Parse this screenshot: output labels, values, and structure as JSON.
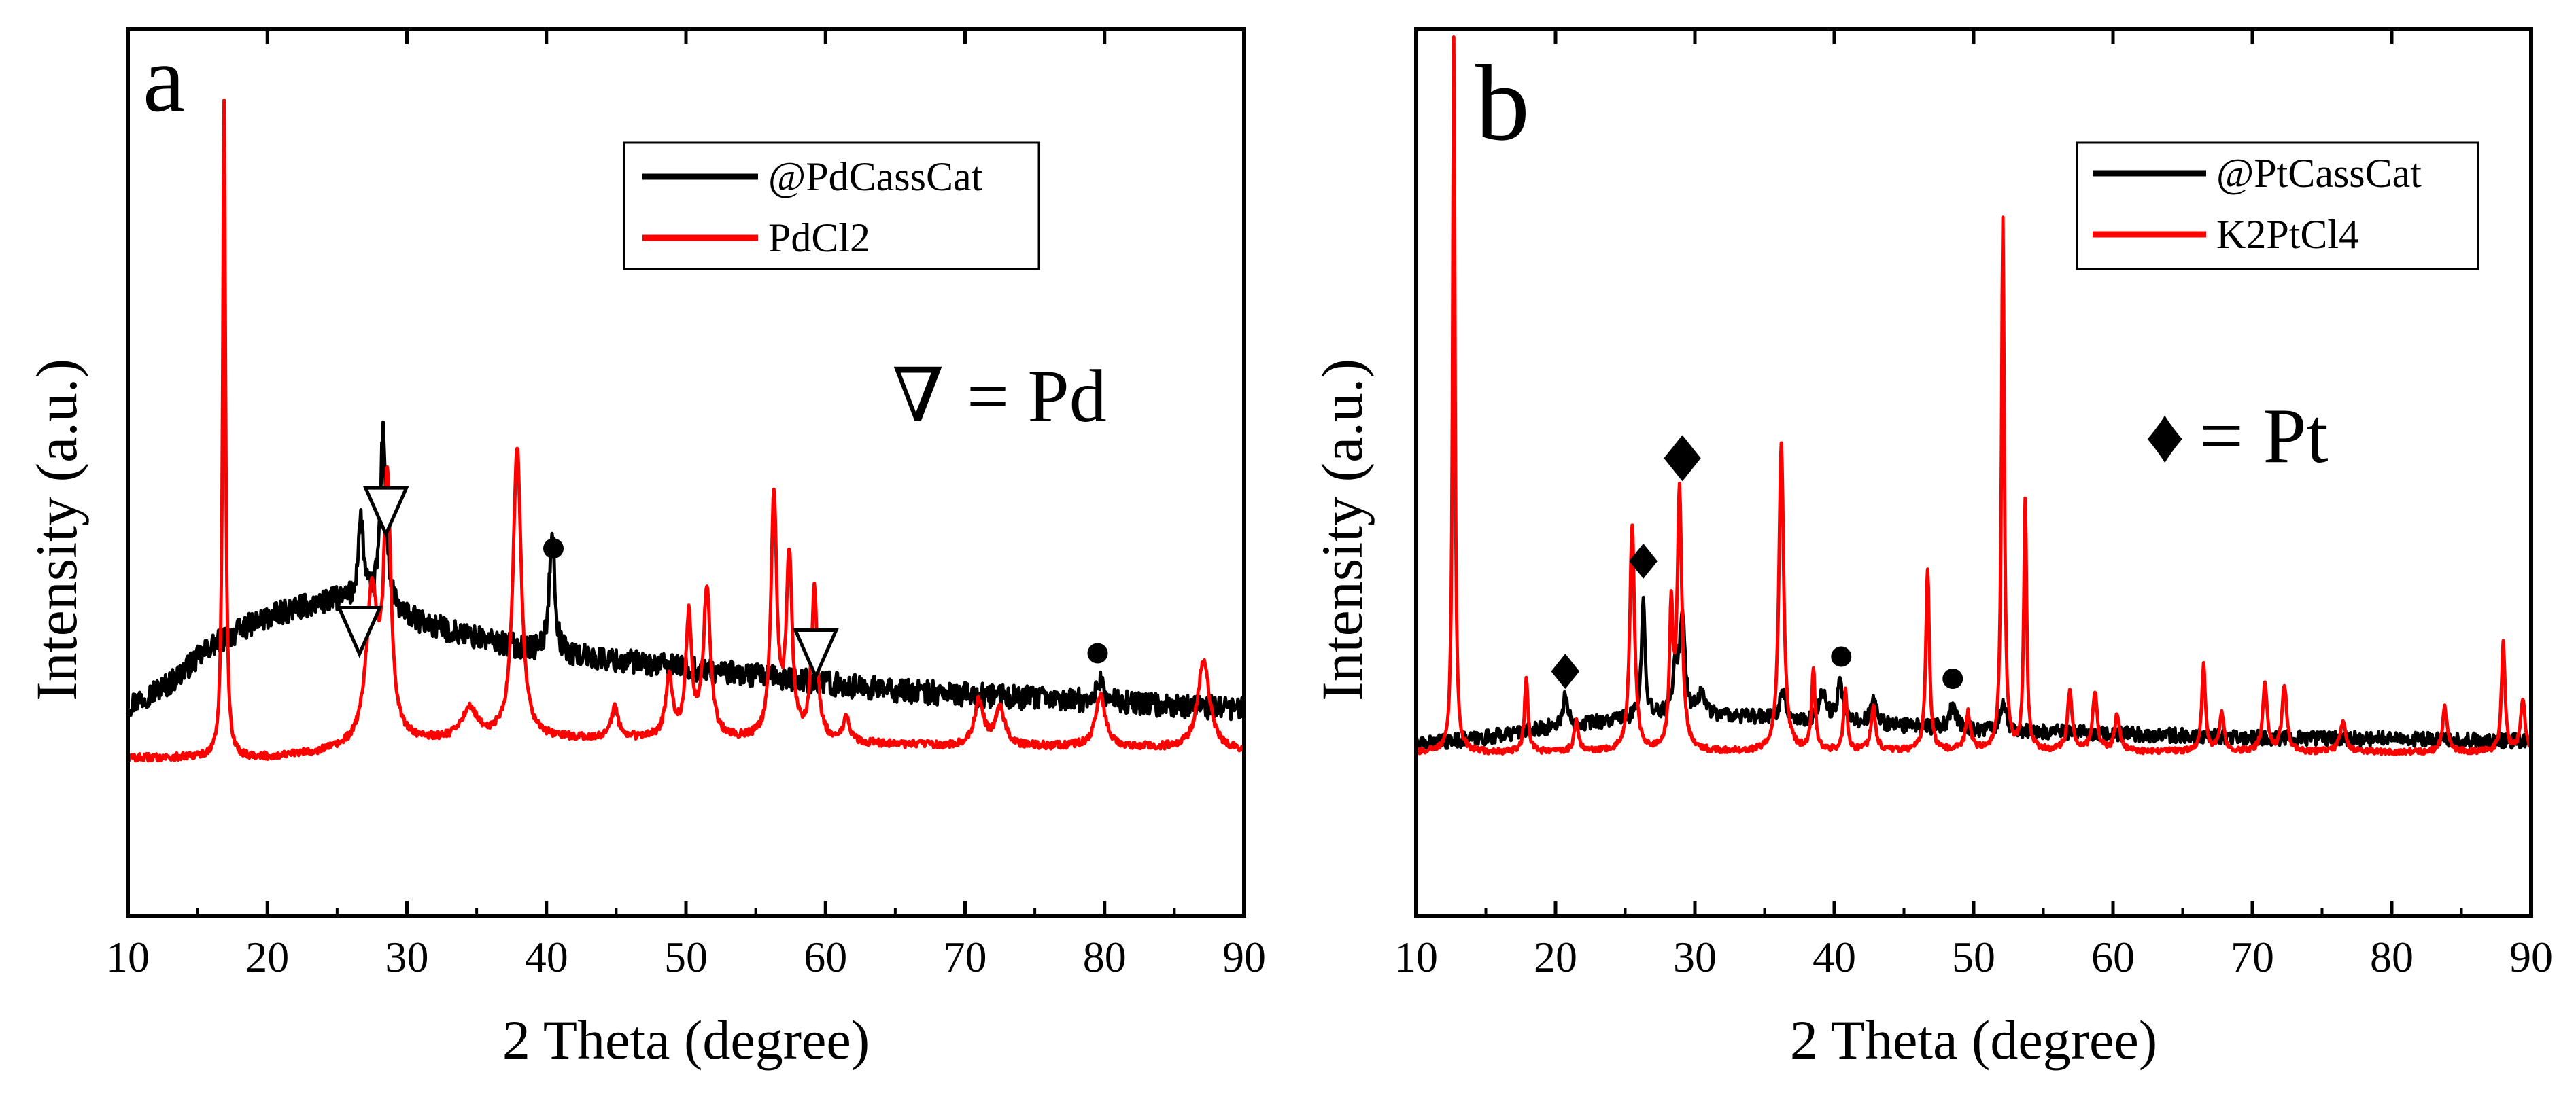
{
  "chart_data": [
    {
      "type": "line",
      "panel_label": "a",
      "xlabel": "2 Theta (degree)",
      "ylabel": "Intensity (a.u.)",
      "xlim": [
        10,
        90
      ],
      "ylim": [
        0,
        100
      ],
      "x_ticks": [
        10,
        20,
        30,
        40,
        50,
        60,
        70,
        80,
        90
      ],
      "x_tick_labels": [
        "10",
        "20",
        "30",
        "40",
        "50",
        "60",
        "70",
        "80",
        "90"
      ],
      "y_ticks_labeled": false,
      "legend": {
        "placement": "top-center",
        "entries": [
          "@PdCassCat",
          "PdCl2"
        ]
      },
      "annotation_key": {
        "symbol": "∇",
        "text": "= Pd"
      },
      "series": [
        {
          "name": "@PdCassCat",
          "color": "#000000",
          "baseline": [
            [
              10,
              18
            ],
            [
              13,
              21
            ],
            [
              16,
              26
            ],
            [
              19,
              29
            ],
            [
              22,
              31
            ],
            [
              25,
              32
            ],
            [
              28,
              31
            ],
            [
              31,
              29
            ],
            [
              35,
              27
            ],
            [
              40,
              25
            ],
            [
              45,
              24
            ],
            [
              50,
              23
            ],
            [
              55,
              22
            ],
            [
              60,
              21
            ],
            [
              65,
              20
            ],
            [
              70,
              19.5
            ],
            [
              75,
              19
            ],
            [
              80,
              18.5
            ],
            [
              85,
              18
            ],
            [
              90,
              17.5
            ]
          ],
          "peaks": [
            [
              26.7,
              11,
              0.25
            ],
            [
              28.3,
              24,
              0.25
            ],
            [
              40.4,
              17,
              0.22
            ],
            [
              79.7,
              3,
              0.3
            ]
          ],
          "noise": 1.6
        },
        {
          "name": "PdCl2",
          "color": "#ff0000",
          "baseline": [
            [
              10,
              11
            ],
            [
              20,
              11
            ],
            [
              26,
              12
            ],
            [
              30,
              13
            ],
            [
              35,
              13.5
            ],
            [
              40,
              13.5
            ],
            [
              50,
              13.5
            ],
            [
              60,
              13
            ],
            [
              70,
              12.5
            ],
            [
              80,
              12.5
            ],
            [
              90,
              12
            ]
          ],
          "peaks": [
            [
              16.9,
              88,
              0.12
            ],
            [
              27.5,
              20,
              0.5
            ],
            [
              28.6,
              34,
              0.3
            ],
            [
              34.5,
              4,
              0.6
            ],
            [
              37.9,
              39,
              0.35
            ],
            [
              44.9,
              4,
              0.3
            ],
            [
              48.8,
              8,
              0.3
            ],
            [
              50.2,
              16,
              0.25
            ],
            [
              51.5,
              20,
              0.3
            ],
            [
              56.3,
              32,
              0.25
            ],
            [
              57.4,
              24,
              0.25
            ],
            [
              59.2,
              20,
              0.25
            ],
            [
              61.5,
              3,
              0.3
            ],
            [
              71.0,
              6,
              0.4
            ],
            [
              72.5,
              5,
              0.4
            ],
            [
              79.7,
              7,
              0.4
            ],
            [
              87.1,
              12,
              0.5
            ]
          ],
          "noise": 0.5
        }
      ],
      "markers": [
        {
          "symbol": "triangle-down",
          "x": 26.6,
          "y": 28
        },
        {
          "symbol": "triangle-down",
          "x": 28.5,
          "y": 44
        },
        {
          "symbol": "triangle-down",
          "x": 59.3,
          "y": 25
        },
        {
          "symbol": "circle",
          "x": 40.5,
          "y": 39
        },
        {
          "symbol": "circle",
          "x": 79.5,
          "y": 25
        }
      ]
    },
    {
      "type": "line",
      "panel_label": "b",
      "xlabel": "2 Theta (degree)",
      "ylabel": "Intensity (a.u.)",
      "xlim": [
        10,
        90
      ],
      "ylim": [
        0,
        100
      ],
      "x_ticks": [
        10,
        20,
        30,
        40,
        50,
        60,
        70,
        80,
        90
      ],
      "x_tick_labels": [
        "10",
        "20",
        "30",
        "40",
        "50",
        "60",
        "70",
        "80",
        "90"
      ],
      "y_ticks_labeled": false,
      "legend": {
        "placement": "top-right",
        "entries": [
          "@PtCassCat",
          "K2PtCl4"
        ]
      },
      "annotation_key": {
        "symbol": "♦",
        "text": "= Pt"
      },
      "series": [
        {
          "name": "@PtCassCat",
          "color": "#000000",
          "baseline": [
            [
              10,
              13
            ],
            [
              15,
              14
            ],
            [
              20,
              15.5
            ],
            [
              25,
              16.5
            ],
            [
              28,
              17
            ],
            [
              32,
              17
            ],
            [
              36,
              16.5
            ],
            [
              40,
              16
            ],
            [
              45,
              15.5
            ],
            [
              50,
              15
            ],
            [
              55,
              14.8
            ],
            [
              60,
              14.5
            ],
            [
              70,
              14
            ],
            [
              80,
              13.8
            ],
            [
              90,
              13.5
            ]
          ],
          "peaks": [
            [
              20.7,
              4,
              0.2
            ],
            [
              26.3,
              17,
              0.15
            ],
            [
              28.6,
              7,
              0.2
            ],
            [
              29.1,
              14,
              0.2
            ],
            [
              30.5,
              3,
              0.3
            ],
            [
              36.3,
              4,
              0.25
            ],
            [
              39.2,
              4,
              0.3
            ],
            [
              40.4,
              5,
              0.25
            ],
            [
              42.8,
              3,
              0.3
            ],
            [
              48.5,
              3,
              0.3
            ],
            [
              52.1,
              4,
              0.25
            ]
          ],
          "noise": 1.0
        },
        {
          "name": "K2PtCl4",
          "color": "#ff0000",
          "baseline": [
            [
              10,
              12
            ],
            [
              30,
              12
            ],
            [
              50,
              12.2
            ],
            [
              70,
              12
            ],
            [
              90,
              12
            ]
          ],
          "peaks": [
            [
              12.7,
              97,
              0.1
            ],
            [
              17.9,
              10,
              0.15
            ],
            [
              21.5,
              4,
              0.2
            ],
            [
              25.5,
              31,
              0.2
            ],
            [
              28.3,
              18,
              0.15
            ],
            [
              28.9,
              35,
              0.2
            ],
            [
              36.2,
              42,
              0.2
            ],
            [
              38.5,
              11,
              0.15
            ],
            [
              40.8,
              8,
              0.15
            ],
            [
              42.8,
              6,
              0.2
            ],
            [
              46.7,
              25,
              0.15
            ],
            [
              49.6,
              5,
              0.2
            ],
            [
              52.1,
              72,
              0.12
            ],
            [
              53.7,
              34,
              0.12
            ],
            [
              56.9,
              8,
              0.2
            ],
            [
              58.7,
              8,
              0.2
            ],
            [
              60.3,
              5,
              0.2
            ],
            [
              66.5,
              12,
              0.15
            ],
            [
              67.8,
              5,
              0.2
            ],
            [
              70.9,
              9,
              0.2
            ],
            [
              72.3,
              9,
              0.2
            ],
            [
              76.5,
              4,
              0.25
            ],
            [
              83.8,
              6,
              0.2
            ],
            [
              88.0,
              15,
              0.15
            ],
            [
              89.4,
              7,
              0.2
            ]
          ],
          "noise": 0.4
        }
      ],
      "markers": [
        {
          "symbol": "diamond",
          "x": 20.7,
          "y": 23
        },
        {
          "symbol": "diamond",
          "x": 26.3,
          "y": 38
        },
        {
          "symbol": "diamond",
          "x": 29.1,
          "y": 52
        },
        {
          "symbol": "circle",
          "x": 40.5,
          "y": 25
        },
        {
          "symbol": "circle",
          "x": 48.5,
          "y": 22
        }
      ]
    }
  ]
}
